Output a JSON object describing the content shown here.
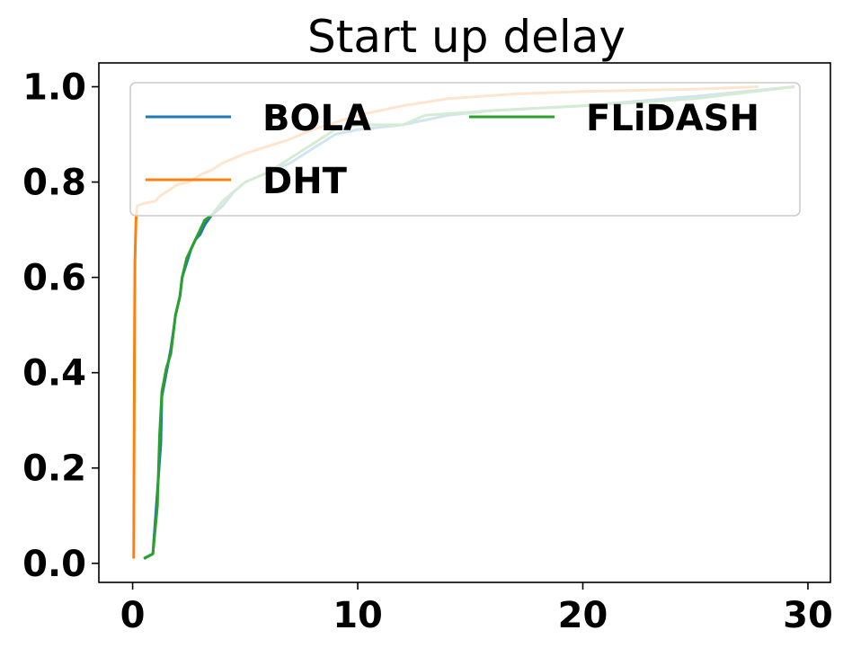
{
  "chart_data": {
    "type": "line",
    "title": "Start up delay",
    "xlabel": "",
    "ylabel": "",
    "xlim": [
      -1.5,
      31
    ],
    "ylim": [
      -0.04,
      1.05
    ],
    "xticks": [
      0,
      10,
      20,
      30
    ],
    "xtick_labels": [
      "0",
      "10",
      "20",
      "30"
    ],
    "yticks": [
      0.0,
      0.2,
      0.4,
      0.6,
      0.8,
      1.0
    ],
    "ytick_labels": [
      "0.0",
      "0.2",
      "0.4",
      "0.6",
      "0.8",
      "1.0"
    ],
    "legend_placement": "top",
    "grid": false,
    "series": [
      {
        "name": "BOLA",
        "color": "#1f77b4",
        "x": [
          0.5,
          0.9,
          1.1,
          1.25,
          1.3,
          1.5,
          1.7,
          1.85,
          1.9,
          2.1,
          2.2,
          2.4,
          2.6,
          2.8,
          3.0,
          3.2,
          3.5,
          4.0,
          4.5,
          5.0,
          6.0,
          7.0,
          8.0,
          9.0,
          10.0,
          12.0,
          14.0,
          16.0,
          20.0,
          25.0,
          29.4
        ],
        "y": [
          0.01,
          0.02,
          0.15,
          0.25,
          0.35,
          0.4,
          0.45,
          0.5,
          0.52,
          0.56,
          0.6,
          0.63,
          0.66,
          0.68,
          0.69,
          0.71,
          0.73,
          0.75,
          0.78,
          0.8,
          0.82,
          0.84,
          0.87,
          0.9,
          0.91,
          0.92,
          0.94,
          0.95,
          0.96,
          0.98,
          1.0
        ]
      },
      {
        "name": "DHT",
        "color": "#ff7f0e",
        "x": [
          0.05,
          0.06,
          0.08,
          0.1,
          0.15,
          0.2,
          0.5,
          1.0,
          1.2,
          2.0,
          2.5,
          3.0,
          3.5,
          4.0,
          4.5,
          5.0,
          6.0,
          7.0,
          8.0,
          9.0,
          10.0,
          12.0,
          14.0,
          17.0,
          20.0,
          25.0,
          27.8
        ],
        "y": [
          0.01,
          0.2,
          0.45,
          0.63,
          0.72,
          0.75,
          0.755,
          0.76,
          0.77,
          0.795,
          0.8,
          0.815,
          0.825,
          0.84,
          0.85,
          0.86,
          0.875,
          0.89,
          0.91,
          0.925,
          0.94,
          0.96,
          0.975,
          0.985,
          0.99,
          0.995,
          1.0
        ]
      },
      {
        "name": "FLiDASH",
        "color": "#2ca02c",
        "x": [
          0.5,
          0.9,
          1.1,
          1.2,
          1.3,
          1.5,
          1.7,
          1.8,
          1.9,
          2.1,
          2.2,
          2.4,
          2.6,
          2.8,
          3.0,
          3.2,
          3.5,
          4.0,
          4.5,
          5.0,
          6.0,
          7.0,
          8.0,
          9.0,
          10.0,
          12.0,
          13.0,
          16.0,
          20.0,
          25.0,
          29.4
        ],
        "y": [
          0.01,
          0.02,
          0.12,
          0.27,
          0.36,
          0.41,
          0.44,
          0.48,
          0.52,
          0.56,
          0.6,
          0.64,
          0.66,
          0.68,
          0.7,
          0.72,
          0.73,
          0.76,
          0.78,
          0.8,
          0.82,
          0.85,
          0.88,
          0.91,
          0.92,
          0.92,
          0.94,
          0.95,
          0.96,
          0.975,
          1.0
        ]
      }
    ]
  }
}
